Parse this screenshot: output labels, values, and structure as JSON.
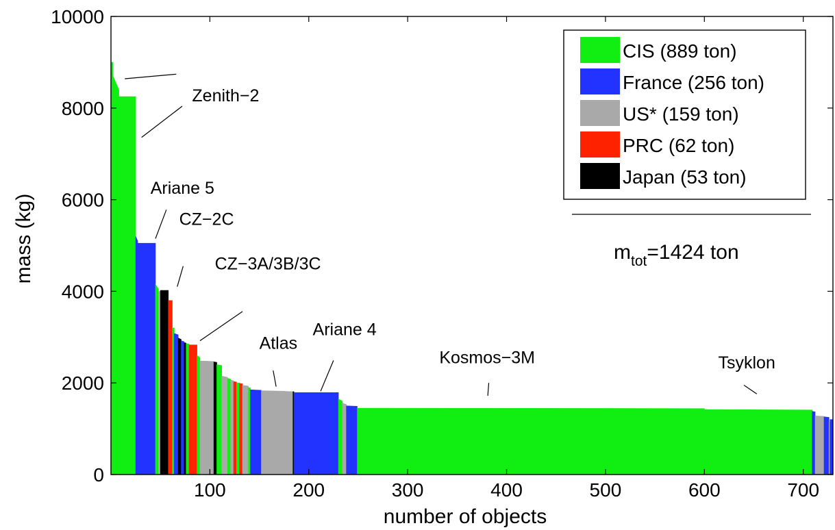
{
  "chart_data": {
    "type": "area",
    "xlabel": "number of objects",
    "ylabel": "mass (kg)",
    "xlim": [
      0,
      730
    ],
    "ylim": [
      0,
      10000
    ],
    "x_ticks": [
      100,
      200,
      300,
      400,
      500,
      600,
      700
    ],
    "y_ticks": [
      0,
      2000,
      4000,
      6000,
      8000,
      10000
    ],
    "grid": false,
    "legend_position": "top-right",
    "colors": {
      "CIS": "#11ee11",
      "France": "#2233ff",
      "US": "#a9a9a9",
      "PRC": "#ff2200",
      "Japan": "#000000"
    },
    "legend": [
      {
        "key": "CIS",
        "label": "CIS (889 ton)"
      },
      {
        "key": "France",
        "label": "France (256 ton)"
      },
      {
        "key": "US",
        "label": "US* (159 ton)"
      },
      {
        "key": "PRC",
        "label": "PRC (62 ton)"
      },
      {
        "key": "Japan",
        "label": "Japan (53 ton)"
      }
    ],
    "total_label": {
      "base": "m",
      "sub": "tot",
      "rest": "=1424 ton"
    },
    "segments": [
      {
        "x0": 0,
        "x1": 2,
        "y0": 9000,
        "y1": 9000,
        "key": "CIS"
      },
      {
        "x0": 2,
        "x1": 8,
        "y0": 8700,
        "y1": 8400,
        "key": "CIS"
      },
      {
        "x0": 8,
        "x1": 25,
        "y0": 8250,
        "y1": 8250,
        "key": "CIS"
      },
      {
        "x0": 25,
        "x1": 27,
        "y0": 5200,
        "y1": 5100,
        "key": "France"
      },
      {
        "x0": 27,
        "x1": 45,
        "y0": 5050,
        "y1": 5050,
        "key": "France"
      },
      {
        "x0": 45,
        "x1": 48,
        "y0": 4150,
        "y1": 4050,
        "key": "CIS"
      },
      {
        "x0": 48,
        "x1": 50,
        "y0": 4000,
        "y1": 4000,
        "key": "US"
      },
      {
        "x0": 50,
        "x1": 58,
        "y0": 4020,
        "y1": 4020,
        "key": "Japan"
      },
      {
        "x0": 58,
        "x1": 62,
        "y0": 3800,
        "y1": 3800,
        "key": "PRC"
      },
      {
        "x0": 62,
        "x1": 64,
        "y0": 3200,
        "y1": 3200,
        "key": "CIS"
      },
      {
        "x0": 64,
        "x1": 68,
        "y0": 3080,
        "y1": 3050,
        "key": "France"
      },
      {
        "x0": 68,
        "x1": 71,
        "y0": 2980,
        "y1": 2950,
        "key": "Japan"
      },
      {
        "x0": 71,
        "x1": 74,
        "y0": 2920,
        "y1": 2900,
        "key": "France"
      },
      {
        "x0": 74,
        "x1": 76,
        "y0": 2880,
        "y1": 2870,
        "key": "Japan"
      },
      {
        "x0": 76,
        "x1": 79,
        "y0": 2860,
        "y1": 2850,
        "key": "CIS"
      },
      {
        "x0": 79,
        "x1": 87,
        "y0": 2830,
        "y1": 2830,
        "key": "PRC"
      },
      {
        "x0": 87,
        "x1": 90,
        "y0": 2600,
        "y1": 2550,
        "key": "CIS"
      },
      {
        "x0": 90,
        "x1": 104,
        "y0": 2480,
        "y1": 2470,
        "key": "US"
      },
      {
        "x0": 104,
        "x1": 107,
        "y0": 2460,
        "y1": 2450,
        "key": "Japan"
      },
      {
        "x0": 107,
        "x1": 112,
        "y0": 2400,
        "y1": 2380,
        "key": "CIS"
      },
      {
        "x0": 112,
        "x1": 118,
        "y0": 2150,
        "y1": 2120,
        "key": "US"
      },
      {
        "x0": 118,
        "x1": 121,
        "y0": 2100,
        "y1": 2080,
        "key": "CIS"
      },
      {
        "x0": 121,
        "x1": 124,
        "y0": 2060,
        "y1": 2050,
        "key": "US"
      },
      {
        "x0": 124,
        "x1": 127,
        "y0": 2030,
        "y1": 2020,
        "key": "PRC"
      },
      {
        "x0": 127,
        "x1": 130,
        "y0": 2000,
        "y1": 2000,
        "key": "CIS"
      },
      {
        "x0": 130,
        "x1": 133,
        "y0": 1990,
        "y1": 1980,
        "key": "PRC"
      },
      {
        "x0": 133,
        "x1": 139,
        "y0": 1950,
        "y1": 1930,
        "key": "US"
      },
      {
        "x0": 139,
        "x1": 141,
        "y0": 1900,
        "y1": 1890,
        "key": "CIS"
      },
      {
        "x0": 141,
        "x1": 152,
        "y0": 1850,
        "y1": 1840,
        "key": "France"
      },
      {
        "x0": 152,
        "x1": 176,
        "y0": 1830,
        "y1": 1820,
        "key": "US"
      },
      {
        "x0": 176,
        "x1": 184,
        "y0": 1815,
        "y1": 1810,
        "key": "US"
      },
      {
        "x0": 184,
        "x1": 185,
        "y0": 1810,
        "y1": 1810,
        "key": "Japan"
      },
      {
        "x0": 185,
        "x1": 230,
        "y0": 1790,
        "y1": 1790,
        "key": "France"
      },
      {
        "x0": 230,
        "x1": 234,
        "y0": 1650,
        "y1": 1600,
        "key": "CIS"
      },
      {
        "x0": 234,
        "x1": 238,
        "y0": 1560,
        "y1": 1530,
        "key": "US"
      },
      {
        "x0": 238,
        "x1": 249,
        "y0": 1500,
        "y1": 1490,
        "key": "France"
      },
      {
        "x0": 249,
        "x1": 600,
        "y0": 1450,
        "y1": 1440,
        "key": "CIS"
      },
      {
        "x0": 600,
        "x1": 709,
        "y0": 1420,
        "y1": 1410,
        "key": "CIS"
      },
      {
        "x0": 709,
        "x1": 712,
        "y0": 1380,
        "y1": 1370,
        "key": "France"
      },
      {
        "x0": 712,
        "x1": 721,
        "y0": 1280,
        "y1": 1270,
        "key": "US"
      },
      {
        "x0": 721,
        "x1": 726,
        "y0": 1260,
        "y1": 1250,
        "key": "France"
      },
      {
        "x0": 726,
        "x1": 727,
        "y0": 1150,
        "y1": 1150,
        "key": "US"
      },
      {
        "x0": 727,
        "x1": 730,
        "y0": 1200,
        "y1": 1200,
        "key": "France"
      }
    ],
    "annotations": [
      {
        "text": "Zenith−2",
        "tx": 82,
        "ty": 8150,
        "lines": [
          [
            14,
            8640,
            66,
            8740
          ],
          [
            31,
            7360,
            72,
            8040
          ]
        ]
      },
      {
        "text": "Ariane 5",
        "tx": 40,
        "ty": 6130,
        "lines": [
          [
            45,
            5150,
            56,
            5780
          ]
        ]
      },
      {
        "text": "CZ−2C",
        "tx": 69,
        "ty": 5450,
        "lines": [
          [
            67,
            4100,
            73,
            4550
          ]
        ]
      },
      {
        "text": "CZ−3A/3B/3C",
        "tx": 105,
        "ty": 4480,
        "lines": [
          [
            90,
            2920,
            133,
            3560
          ]
        ]
      },
      {
        "text": "Atlas",
        "tx": 150,
        "ty": 2740,
        "lines": [
          [
            167,
            1920,
            164,
            2270
          ]
        ]
      },
      {
        "text": "Ariane 4",
        "tx": 204,
        "ty": 3040,
        "lines": [
          [
            212,
            1820,
            225,
            2490
          ]
        ]
      },
      {
        "text": "Kosmos−3M",
        "tx": 332,
        "ty": 2430,
        "lines": [
          [
            381,
            1720,
            382,
            2000
          ]
        ]
      },
      {
        "text": "Tsyklon",
        "tx": 614,
        "ty": 2320,
        "lines": [
          [
            653,
            1760,
            640,
            1950
          ]
        ]
      }
    ]
  }
}
